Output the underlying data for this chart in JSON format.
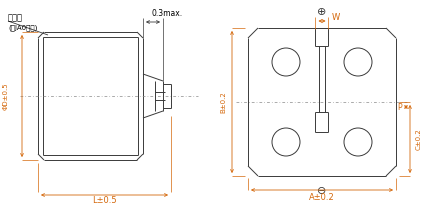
{
  "bg_color": "#ffffff",
  "line_color": "#3a3a3a",
  "dim_color": "#d4670a",
  "text_color": "#000000",
  "fig_width": 4.25,
  "fig_height": 2.15,
  "dpi": 100,
  "labels": {
    "pressure_valve": "压力阀",
    "ja0_note": "(只JA0对应)",
    "d_label": "ΦD±0.5",
    "l_label": "L±0.5",
    "max_label": "0.3max.",
    "b_label": "B±0.2",
    "a_label": "A±0.2",
    "c_label": "C±0.2",
    "p_label": "P",
    "w_label": "W",
    "plus_sym": "⊕",
    "minus_sym": "⊖"
  }
}
